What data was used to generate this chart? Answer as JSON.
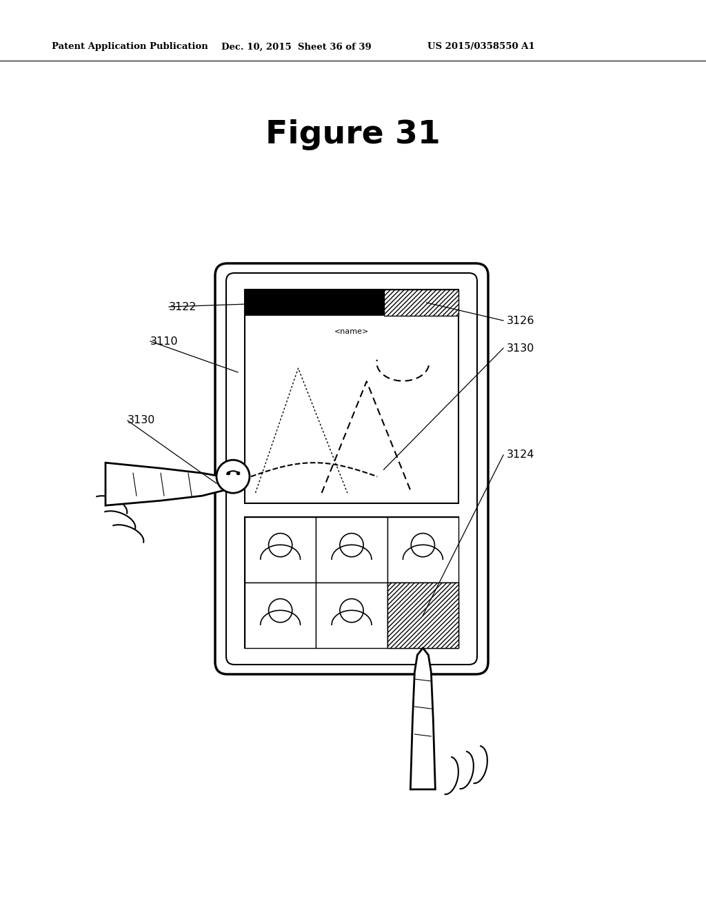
{
  "title": "Figure 31",
  "header_left": "Patent Application Publication",
  "header_mid": "Dec. 10, 2015  Sheet 36 of 39",
  "header_right": "US 2015/0358550 A1",
  "bg": "#ffffff",
  "label_3122": "3122",
  "label_3110": "3110",
  "label_3130_left": "3130",
  "label_3126": "3126",
  "label_3130_right": "3130",
  "label_3124": "3124"
}
